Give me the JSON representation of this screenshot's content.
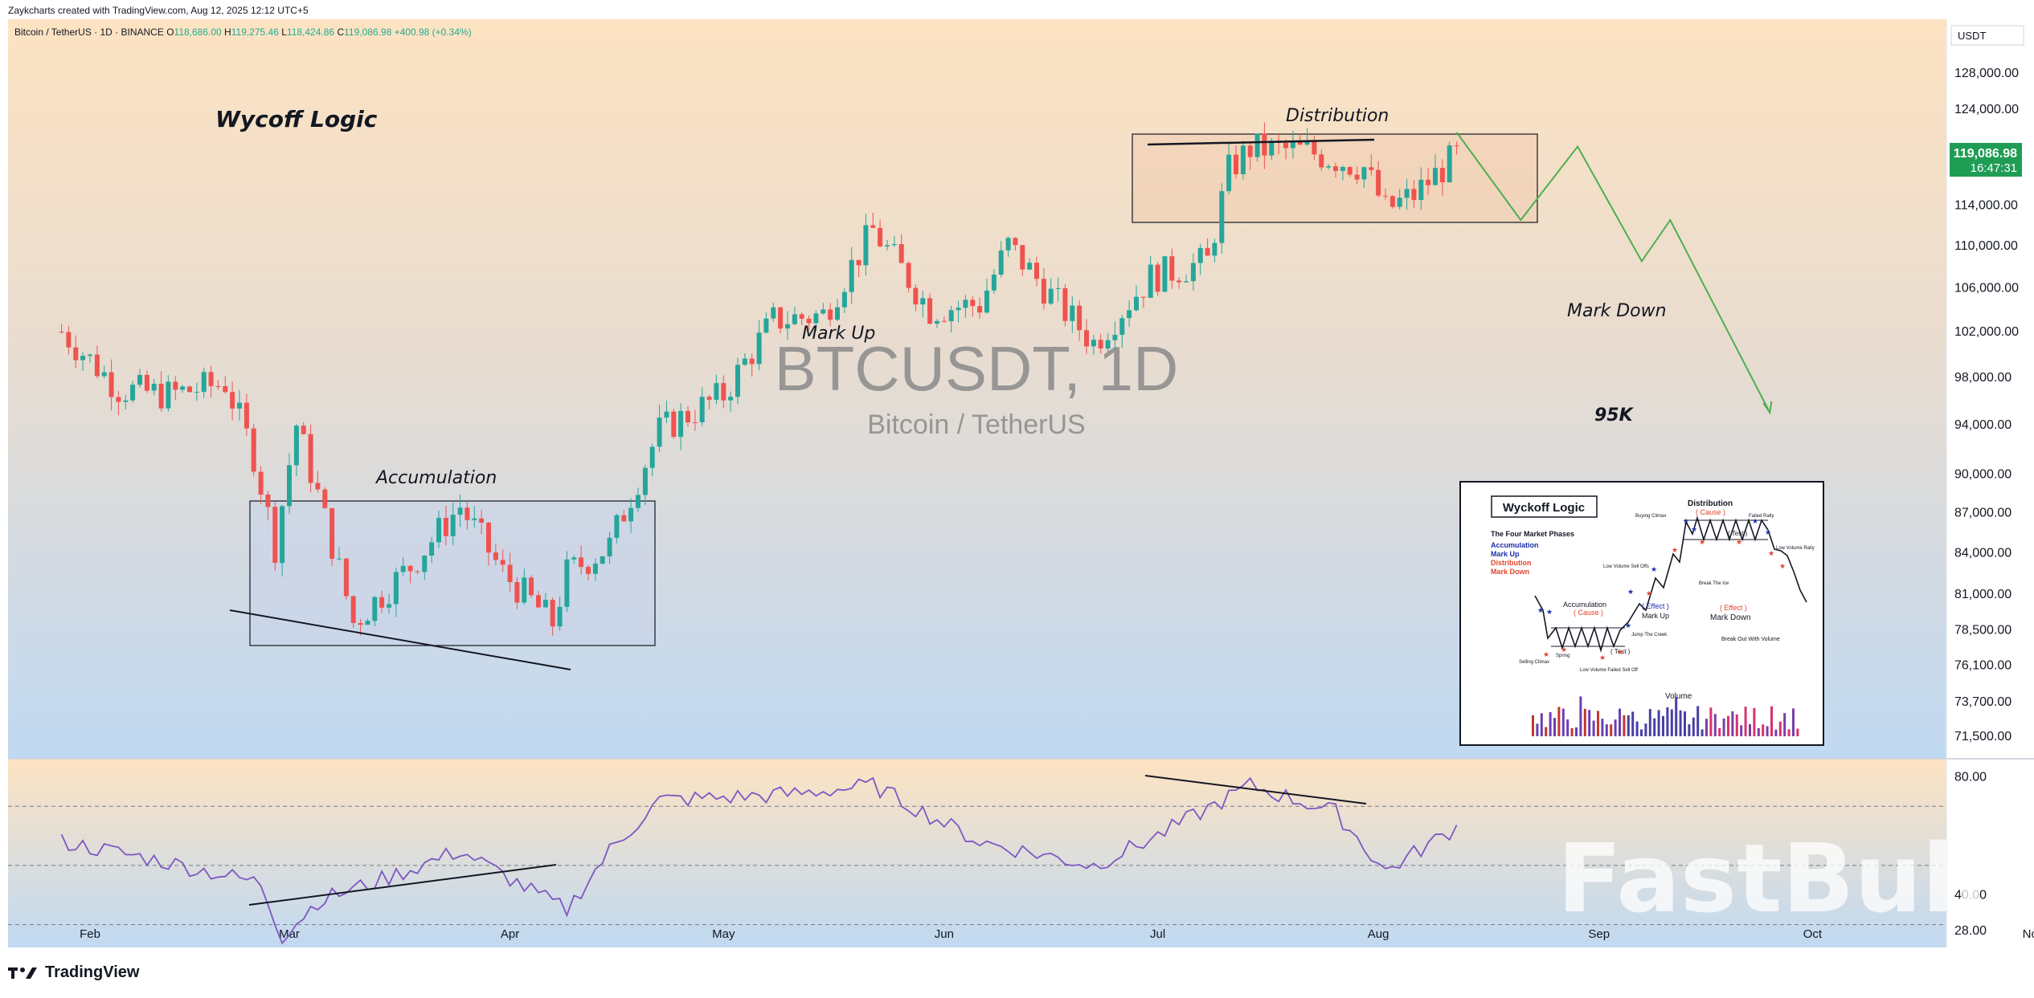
{
  "header": {
    "created_by": "Zaykcharts created with TradingView.com, Aug 12, 2025 12:12 UTC+5"
  },
  "symbol_info": {
    "name": "Bitcoin / TetherUS · 1D · BINANCE",
    "open_label": "O",
    "open": "118,686.00",
    "high_label": "H",
    "high": "119,275.46",
    "low_label": "L",
    "low": "118,424.86",
    "close_label": "C",
    "close": "119,086.98",
    "change": "+400.98 (+0.34%)"
  },
  "currency_badge": "USDT",
  "watermark": {
    "title": "BTCUSDT, 1D",
    "subtitle": "Bitcoin / TetherUS"
  },
  "last_price": {
    "value": "119,086.98",
    "countdown": "16:47:31"
  },
  "annotations": {
    "wycoff": "Wycoff Logic",
    "accumulation": "Accumulation",
    "mark_up": "Mark Up",
    "distribution": "Distribution",
    "mark_down": "Mark Down",
    "target": "95K"
  },
  "inset": {
    "title": "Wyckoff Logic",
    "phases_title": "The Four Market Phases",
    "phases": [
      {
        "label": "Accumulation",
        "color": "#1c2fa8"
      },
      {
        "label": "Mark Up",
        "color": "#1c2fa8"
      },
      {
        "label": "Distribution",
        "color": "#e0452a"
      },
      {
        "label": "Mark Down",
        "color": "#e0452a"
      }
    ],
    "labels": {
      "distribution": "Distribution",
      "cause1": "( Cause )",
      "buying_climax": "Buying Climax",
      "failed_rally": "Failed Rally",
      "test1": "( Test )",
      "low_volume_rally": "Low Volume Rally",
      "low_volume_sell_offs": "Low Volume Sell Offs",
      "accumulation": "Accumulation",
      "cause2": "( Cause )",
      "effect1": "( Effect )",
      "mark_up": "Mark Up",
      "effect2": "( Effect )",
      "mark_down": "Mark Down",
      "break_ice": "Break The Ice",
      "jump_creek": "Jump The Creek",
      "selling_climax": "Selling Climax",
      "spring": "Spring",
      "test2": "( Test )",
      "low_volume_failed": "Low Volume Failed Sell Off",
      "break_out": "Break Out With Volume",
      "volume": "Volume"
    }
  },
  "fastbull": "FastBull",
  "footer": {
    "brand": "TradingView"
  },
  "chart_data": [
    {
      "type": "candlestick",
      "title": "BTCUSDT, 1D",
      "price_axis": [
        "128,000.00",
        "124,000.00",
        "114,000.00",
        "110,000.00",
        "106,000.00",
        "102,000.00",
        "98,000.00",
        "94,000.00",
        "90,000.00",
        "87,000.00",
        "84,000.00",
        "81,000.00",
        "78,500.00",
        "76,100.00",
        "73,700.00",
        "71,500.00"
      ],
      "time_axis": [
        "Feb",
        "Mar",
        "Apr",
        "May",
        "Jun",
        "Jul",
        "Aug",
        "Sep",
        "Oct",
        "Nov"
      ],
      "price_range": [
        71500,
        128000
      ],
      "log_scale": true,
      "points": [
        {
          "date": "2025-01-28",
          "close": 102000
        },
        {
          "date": "2025-02-05",
          "close": 97000
        },
        {
          "date": "2025-02-12",
          "close": 96500
        },
        {
          "date": "2025-02-20",
          "close": 97500
        },
        {
          "date": "2025-02-24",
          "close": 91500
        },
        {
          "date": "2025-02-27",
          "close": 84500
        },
        {
          "date": "2025-03-02",
          "close": 94000
        },
        {
          "date": "2025-03-10",
          "close": 79000
        },
        {
          "date": "2025-03-18",
          "close": 83000
        },
        {
          "date": "2025-03-25",
          "close": 87500
        },
        {
          "date": "2025-03-31",
          "close": 82500
        },
        {
          "date": "2025-04-07",
          "close": 79000
        },
        {
          "date": "2025-04-09",
          "close": 82500
        },
        {
          "date": "2025-04-15",
          "close": 84500
        },
        {
          "date": "2025-04-22",
          "close": 93500
        },
        {
          "date": "2025-05-01",
          "close": 96500
        },
        {
          "date": "2025-05-08",
          "close": 103000
        },
        {
          "date": "2025-05-15",
          "close": 103500
        },
        {
          "date": "2025-05-22",
          "close": 111500
        },
        {
          "date": "2025-05-30",
          "close": 104000
        },
        {
          "date": "2025-06-06",
          "close": 104500
        },
        {
          "date": "2025-06-10",
          "close": 110000
        },
        {
          "date": "2025-06-17",
          "close": 104500
        },
        {
          "date": "2025-06-22",
          "close": 101000
        },
        {
          "date": "2025-06-30",
          "close": 107000
        },
        {
          "date": "2025-07-08",
          "close": 108500
        },
        {
          "date": "2025-07-11",
          "close": 117500
        },
        {
          "date": "2025-07-14",
          "close": 119800
        },
        {
          "date": "2025-07-22",
          "close": 119500
        },
        {
          "date": "2025-07-30",
          "close": 117800
        },
        {
          "date": "2025-08-02",
          "close": 113500
        },
        {
          "date": "2025-08-06",
          "close": 115000
        },
        {
          "date": "2025-08-12",
          "close": 119086.98
        }
      ],
      "projection": [
        {
          "date": "2025-08-12",
          "price": 121500
        },
        {
          "date": "2025-08-21",
          "price": 112500
        },
        {
          "date": "2025-08-29",
          "price": 120000
        },
        {
          "date": "2025-09-07",
          "price": 108500
        },
        {
          "date": "2025-09-11",
          "price": 112500
        },
        {
          "date": "2025-09-25",
          "price": 95000
        }
      ]
    },
    {
      "type": "line",
      "title": "",
      "axis_labels": [
        "80.00",
        "40.00",
        "28.00"
      ],
      "levels": [
        70,
        50,
        30
      ],
      "y_range": [
        25,
        82
      ],
      "points": [
        {
          "date": "2025-01-28",
          "value": 58
        },
        {
          "date": "2025-02-10",
          "value": 52
        },
        {
          "date": "2025-02-25",
          "value": 44
        },
        {
          "date": "2025-02-28",
          "value": 26
        },
        {
          "date": "2025-03-05",
          "value": 38
        },
        {
          "date": "2025-03-15",
          "value": 46
        },
        {
          "date": "2025-03-25",
          "value": 55
        },
        {
          "date": "2025-04-05",
          "value": 40
        },
        {
          "date": "2025-04-09",
          "value": 35
        },
        {
          "date": "2025-04-15",
          "value": 55
        },
        {
          "date": "2025-04-22",
          "value": 72
        },
        {
          "date": "2025-05-10",
          "value": 74
        },
        {
          "date": "2025-05-22",
          "value": 77
        },
        {
          "date": "2025-06-06",
          "value": 58
        },
        {
          "date": "2025-06-22",
          "value": 50
        },
        {
          "date": "2025-07-01",
          "value": 60
        },
        {
          "date": "2025-07-14",
          "value": 77
        },
        {
          "date": "2025-07-26",
          "value": 68
        },
        {
          "date": "2025-08-02",
          "value": 48
        },
        {
          "date": "2025-08-12",
          "value": 63
        }
      ]
    }
  ]
}
